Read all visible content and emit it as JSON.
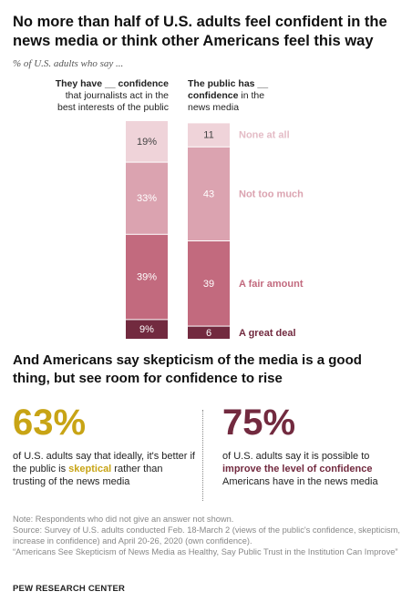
{
  "title": "No more than half of U.S. adults feel confident in the news media or think other Americans feel this way",
  "subtitle": "% of U.S. adults who say ...",
  "column_headers": [
    {
      "line1": "They have __ confidence",
      "line2": "that journalists act in the",
      "line3": "best interests of the public"
    },
    {
      "line1": "The public has __",
      "line2_bold": "confidence",
      "line2_rest": " in the",
      "line3": "news media"
    }
  ],
  "chart_data": {
    "type": "bar",
    "stacked": true,
    "orientation": "vertical",
    "categories": [
      "They have __ confidence that journalists act in the best interests of the public",
      "The public has __ confidence in the news media"
    ],
    "series": [
      {
        "name": "A great deal",
        "values": [
          9,
          6
        ],
        "labels": [
          "9%",
          "6"
        ],
        "color": "#722a3f"
      },
      {
        "name": "A fair amount",
        "values": [
          39,
          39
        ],
        "labels": [
          "39%",
          "39"
        ],
        "color": "#c26a7e"
      },
      {
        "name": "Not too much",
        "values": [
          33,
          43
        ],
        "labels": [
          "33%",
          "43"
        ],
        "color": "#dba3b0"
      },
      {
        "name": "None at all",
        "values": [
          19,
          11
        ],
        "labels": [
          "19%",
          "11"
        ],
        "color": "#efd3d9"
      }
    ]
  },
  "section2_title": "And Americans say skepticism of the media is a good thing, but see room for confidence to rise",
  "stat1": {
    "value": "63%",
    "text_before": "of U.S. adults say that ideally, it's better if the public is ",
    "highlight": "skeptical",
    "text_after": " rather than trusting of the news media",
    "color": "#c8a415"
  },
  "stat2": {
    "value": "75%",
    "text_before": "of U.S. adults say it is possible to ",
    "highlight": "improve the level of confidence",
    "text_after": " Americans have in the news media",
    "color": "#722a3f"
  },
  "notes": [
    "Note: Respondents who did not give an answer not shown.",
    "Source: Survey of U.S. adults conducted Feb. 18-March 2 (views of the public's confidence, skepticism, increase in confidence) and April 20-26, 2020 (own confidence).",
    "“Americans See Skepticism of News Media as Healthy, Say Public Trust in the Institution Can Improve”"
  ],
  "brand": "PEW RESEARCH CENTER"
}
